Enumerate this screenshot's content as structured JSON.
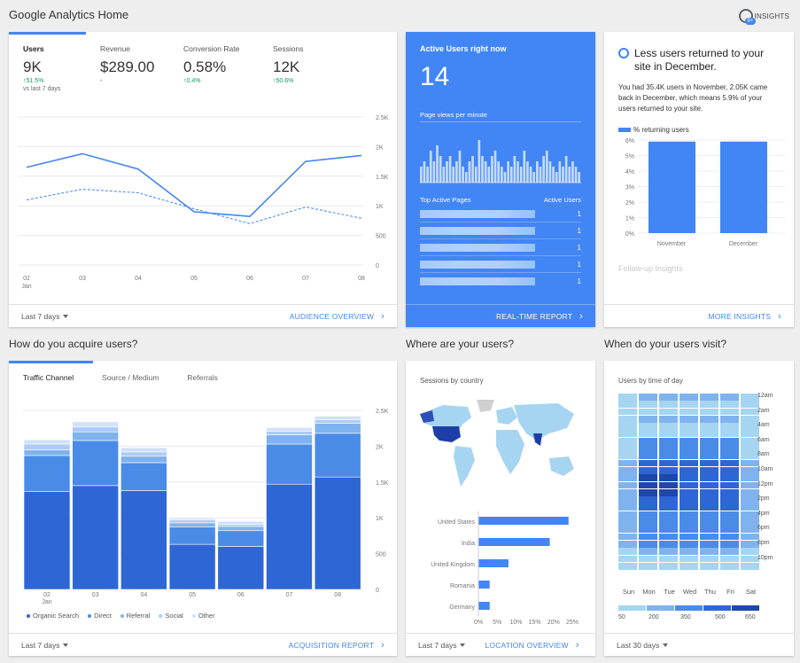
{
  "page_title": "Google Analytics Home",
  "insights_label": "INSIGHTS",
  "insights_badge": "9+",
  "overview": {
    "metrics": [
      {
        "label": "Users",
        "value": "9K",
        "change": "↑51.5%",
        "sub": "vs last 7 days"
      },
      {
        "label": "Revenue",
        "value": "$289.00",
        "change": "-",
        "sub": ""
      },
      {
        "label": "Conversion Rate",
        "value": "0.58%",
        "change": "↑0.4%",
        "sub": ""
      },
      {
        "label": "Sessions",
        "value": "12K",
        "change": "↑50.6%",
        "sub": ""
      }
    ],
    "x_labels": [
      "02",
      "03",
      "04",
      "05",
      "06",
      "07",
      "08"
    ],
    "x_sublabel": "Jan",
    "y_labels": [
      "2.5K",
      "2K",
      "1.5K",
      "1K",
      "500",
      "0"
    ],
    "footer_dropdown": "Last 7 days",
    "footer_link": "AUDIENCE OVERVIEW"
  },
  "realtime": {
    "title": "Active Users right now",
    "count": "14",
    "subtitle": "Page views per minute",
    "table_left": "Top Active Pages",
    "table_right": "Active Users",
    "rows": [
      "1",
      "1",
      "1",
      "1",
      "1"
    ],
    "footer_link": "REAL-TIME REPORT"
  },
  "insight": {
    "headline": "Less users returned to your site in December.",
    "body": "You had 35.4K users in November, 2.05K came back in December, which means 5.9% of your users returned to your site.",
    "legend": "% returning users",
    "y_labels": [
      "6%",
      "5%",
      "4%",
      "3%",
      "2%",
      "1%",
      "0%"
    ],
    "follow_up": "Follow-up Insights",
    "footer_link": "MORE INSIGHTS"
  },
  "acquisition": {
    "heading": "How do you acquire users?",
    "tabs": [
      "Traffic Channel",
      "Source / Medium",
      "Referrals"
    ],
    "y_labels": [
      "2.5K",
      "2K",
      "1.5K",
      "1K",
      "500",
      "0"
    ],
    "x_labels": [
      "02",
      "03",
      "04",
      "05",
      "06",
      "07",
      "08"
    ],
    "x_sublabel": "Jan",
    "legend": [
      "Organic Search",
      "Direct",
      "Referral",
      "Social",
      "Other"
    ],
    "footer_dropdown": "Last 7 days",
    "footer_link": "ACQUISITION REPORT"
  },
  "location": {
    "heading": "Where are your users?",
    "title": "Sessions by country",
    "x_labels": [
      "0%",
      "5%",
      "10%",
      "15%",
      "20%",
      "25%"
    ],
    "footer_dropdown": "Last 7 days",
    "footer_link": "LOCATION OVERVIEW"
  },
  "time": {
    "heading": "When do your users visit?",
    "title": "Users by time of day",
    "hours": [
      "12am",
      "2am",
      "4am",
      "6am",
      "8am",
      "10am",
      "12pm",
      "2pm",
      "4pm",
      "6pm",
      "8pm",
      "10pm"
    ],
    "days": [
      "Sun",
      "Mon",
      "Tue",
      "Wed",
      "Thu",
      "Fri",
      "Sat"
    ],
    "scale_labels": [
      "50",
      "200",
      "350",
      "500",
      "650"
    ],
    "scale_colors": [
      "#a6d5f1",
      "#7fb3ee",
      "#4a8be8",
      "#2f66d6",
      "#1f47a8"
    ],
    "footer_dropdown": "Last 30 days"
  },
  "colors": {
    "accent": "#4285f4",
    "positive": "#0f9d58"
  },
  "chart_data": [
    {
      "type": "line",
      "x": [
        "02",
        "03",
        "04",
        "05",
        "06",
        "07",
        "08"
      ],
      "series": [
        {
          "name": "Users",
          "values": [
            1650,
            1880,
            1620,
            900,
            820,
            1750,
            1850
          ]
        },
        {
          "values": [
            1100,
            1280,
            1220,
            950,
            700,
            980,
            790
          ]
        }
      ],
      "ylim": [
        0,
        2500
      ],
      "grid": true
    },
    {
      "type": "bar",
      "categories": [
        "02",
        "03",
        "04",
        "05",
        "06",
        "07",
        "08"
      ],
      "series": [
        {
          "name": "Organic Search",
          "values": [
            1370,
            1450,
            1380,
            630,
            600,
            1470,
            1570
          ]
        },
        {
          "name": "Direct",
          "values": [
            500,
            630,
            390,
            240,
            220,
            560,
            610
          ]
        },
        {
          "name": "Referral",
          "values": [
            80,
            120,
            90,
            60,
            60,
            130,
            140
          ]
        },
        {
          "name": "Social",
          "values": [
            80,
            70,
            60,
            40,
            30,
            50,
            50
          ]
        },
        {
          "name": "Other",
          "values": [
            60,
            70,
            60,
            30,
            40,
            50,
            50
          ]
        }
      ],
      "ylim": [
        0,
        2500
      ],
      "grid": true
    },
    {
      "type": "bar",
      "categories": [
        "November",
        "December"
      ],
      "values": [
        5.9,
        5.9
      ],
      "ylim": [
        0,
        6
      ]
    },
    {
      "type": "bar",
      "orientation": "horizontal",
      "categories": [
        "United States",
        "India",
        "United Kingdom",
        "Romania",
        "Germany"
      ],
      "values": [
        24,
        19,
        8,
        3,
        3
      ],
      "xlim": [
        0,
        25
      ]
    },
    {
      "type": "bar",
      "categories": [
        "1",
        "2",
        "3",
        "4",
        "5",
        "6",
        "7",
        "8",
        "9",
        "10",
        "11",
        "12",
        "13",
        "14",
        "15",
        "16",
        "17",
        "18",
        "19",
        "20",
        "21",
        "22",
        "23",
        "24",
        "25",
        "26",
        "27",
        "28",
        "29",
        "30",
        "31",
        "32",
        "33",
        "34",
        "35",
        "36",
        "37",
        "38",
        "39",
        "40",
        "41",
        "42",
        "43",
        "44",
        "45",
        "46",
        "47",
        "48",
        "49",
        "50"
      ],
      "values": [
        3,
        4,
        3,
        6,
        4,
        7,
        5,
        3,
        4,
        5,
        3,
        4,
        6,
        3,
        2,
        4,
        5,
        3,
        8,
        5,
        4,
        3,
        5,
        6,
        4,
        3,
        2,
        4,
        3,
        5,
        4,
        3,
        6,
        4,
        3,
        2,
        4,
        3,
        5,
        6,
        4,
        3,
        2,
        4,
        3,
        5,
        3,
        4,
        3,
        2
      ]
    }
  ]
}
